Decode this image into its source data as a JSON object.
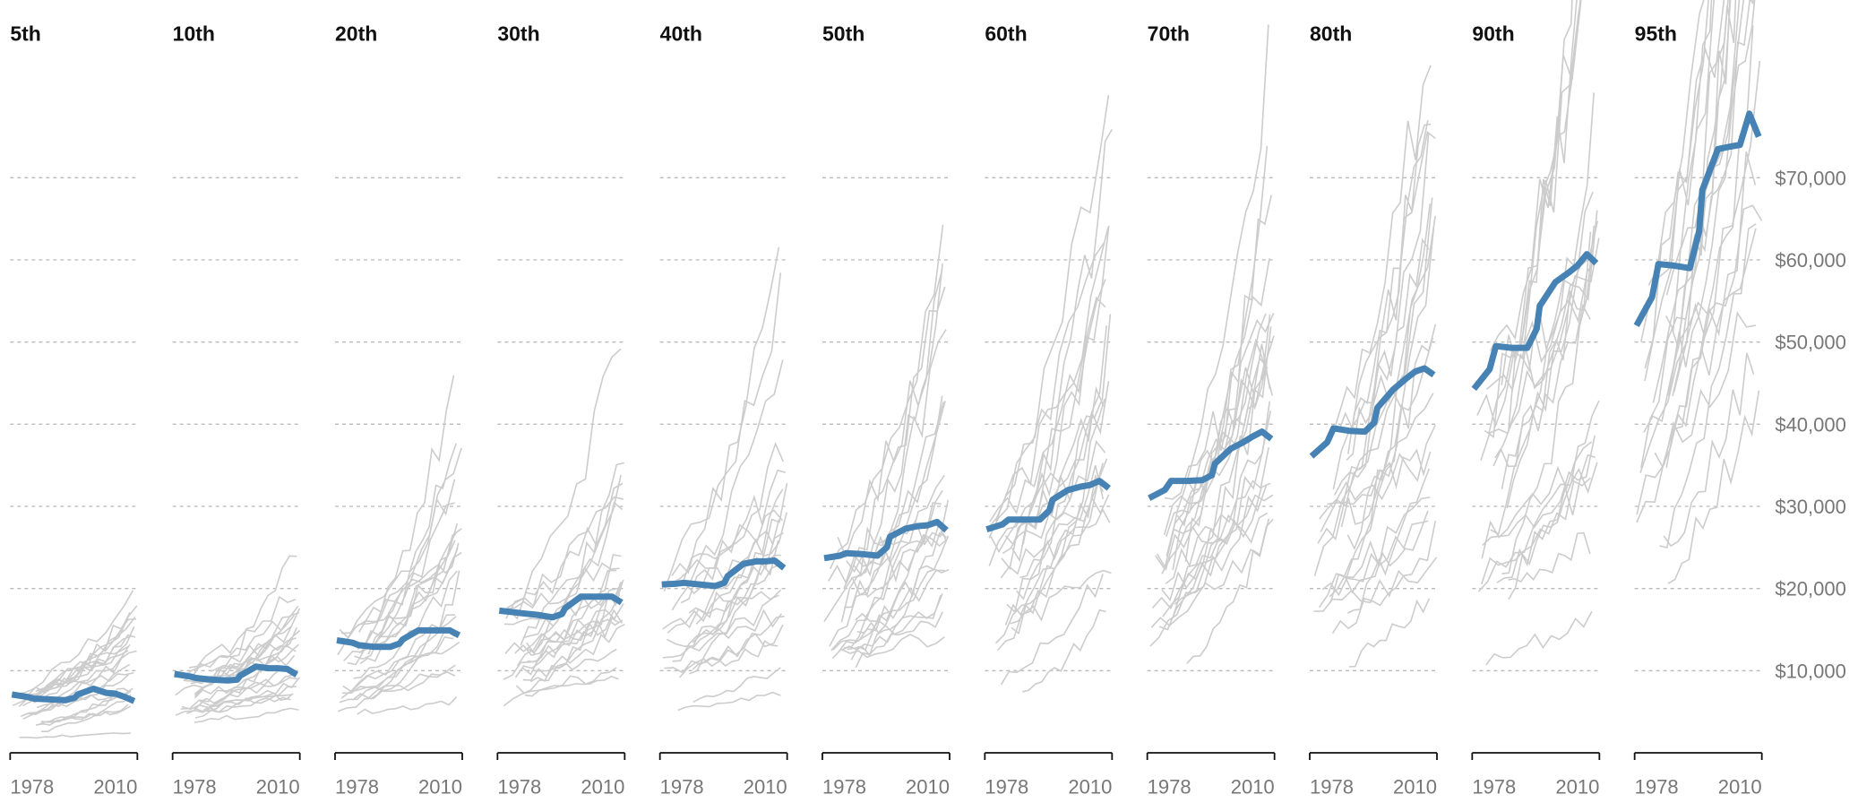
{
  "chart_data": {
    "type": "line",
    "layout": "small-multiples",
    "colors": {
      "highlight": "#4682b4",
      "other": "#cccccc",
      "axis": "#111111",
      "grid": "#bbbbbb",
      "labels": "#777777"
    },
    "x_ticks": [
      1978,
      2010
    ],
    "x_range": [
      1974,
      2014
    ],
    "ylim": [
      0,
      80000
    ],
    "y_ticks": [
      10000,
      20000,
      30000,
      40000,
      50000,
      60000,
      70000
    ],
    "y_tick_labels": [
      "$10,000",
      "$20,000",
      "$30,000",
      "$40,000",
      "$50,000",
      "$60,000",
      "$70,000"
    ],
    "grid": true,
    "x": [
      1974,
      1979,
      1981,
      1986,
      1991,
      1994,
      1995,
      2000,
      2004,
      2007,
      2010,
      2013
    ],
    "panels": [
      {
        "title": "5th",
        "highlight": [
          7100,
          6800,
          6600,
          6500,
          6400,
          6700,
          7100,
          7800,
          7300,
          7200,
          6800,
          6300
        ]
      },
      {
        "title": "10th",
        "highlight": [
          9600,
          9300,
          9100,
          8900,
          8800,
          8900,
          9400,
          10500,
          10300,
          10300,
          10200,
          9500
        ]
      },
      {
        "title": "20th",
        "highlight": [
          13700,
          13400,
          13100,
          12900,
          12900,
          13300,
          13800,
          14900,
          14900,
          14900,
          14900,
          14300
        ]
      },
      {
        "title": "30th",
        "highlight": [
          17300,
          17100,
          17000,
          16800,
          16500,
          16900,
          17600,
          19000,
          19000,
          19000,
          19000,
          18300
        ]
      },
      {
        "title": "40th",
        "highlight": [
          20500,
          20600,
          20700,
          20500,
          20300,
          20700,
          21500,
          23000,
          23300,
          23300,
          23400,
          22500
        ]
      },
      {
        "title": "50th",
        "highlight": [
          23700,
          24000,
          24300,
          24200,
          24000,
          25000,
          26300,
          27300,
          27600,
          27700,
          28100,
          27100
        ]
      },
      {
        "title": "60th",
        "highlight": [
          27200,
          27800,
          28400,
          28400,
          28400,
          29500,
          30800,
          32000,
          32400,
          32600,
          33100,
          32200
        ]
      },
      {
        "title": "70th",
        "highlight": [
          31000,
          32000,
          33100,
          33100,
          33200,
          33800,
          35200,
          37000,
          37800,
          38500,
          39100,
          38200
        ]
      },
      {
        "title": "80th",
        "highlight": [
          36100,
          37800,
          39500,
          39200,
          39100,
          40200,
          42000,
          44200,
          45500,
          46400,
          46800,
          46000
        ]
      },
      {
        "title": "90th",
        "highlight": [
          44300,
          46700,
          49500,
          49300,
          49300,
          51600,
          54400,
          57300,
          58400,
          59300,
          60700,
          59600
        ]
      },
      {
        "title": "95th",
        "highlight": [
          52000,
          55500,
          59500,
          59300,
          59000,
          63500,
          68500,
          73500,
          73800,
          74000,
          77800,
          75000
        ]
      }
    ]
  }
}
